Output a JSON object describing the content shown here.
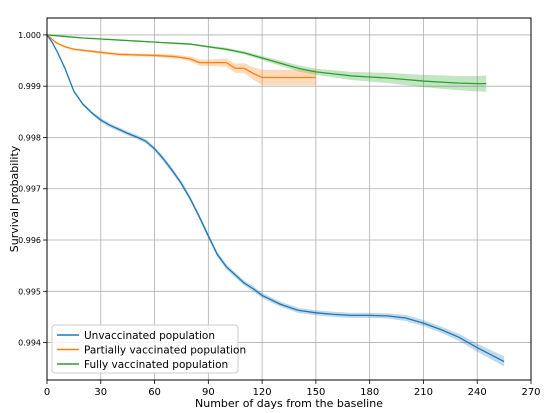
{
  "chart_data": {
    "type": "line",
    "title": "",
    "xlabel": "Number of days from the baseline",
    "ylabel": "Survival probability",
    "xlim": [
      0,
      270
    ],
    "ylim": [
      0.99327,
      1.00033
    ],
    "xticks": [
      0,
      30,
      60,
      90,
      120,
      150,
      180,
      210,
      240,
      270
    ],
    "xtick_labels": [
      "0",
      "30",
      "60",
      "90",
      "120",
      "150",
      "180",
      "210",
      "240",
      "270"
    ],
    "yticks": [
      0.994,
      0.995,
      0.996,
      0.997,
      0.998,
      0.999,
      1.0
    ],
    "ytick_labels": [
      "0.994",
      "0.995",
      "0.996",
      "0.997",
      "0.998",
      "0.999",
      "1.000"
    ],
    "grid": true,
    "legend_position": "lower-left",
    "series": [
      {
        "name": "Unvaccinated population",
        "color": "#1f77b4",
        "x": [
          0,
          3,
          6,
          10,
          15,
          20,
          25,
          30,
          35,
          40,
          45,
          50,
          55,
          60,
          65,
          70,
          75,
          80,
          85,
          90,
          95,
          100,
          105,
          110,
          115,
          120,
          130,
          140,
          150,
          160,
          170,
          180,
          190,
          200,
          210,
          220,
          230,
          240,
          250,
          255
        ],
        "y": [
          1.0,
          0.99985,
          0.99965,
          0.99935,
          0.9989,
          0.99865,
          0.99848,
          0.99834,
          0.99824,
          0.99816,
          0.99808,
          0.99801,
          0.99793,
          0.99778,
          0.99758,
          0.99735,
          0.9971,
          0.9968,
          0.99645,
          0.99608,
          0.99572,
          0.99548,
          0.99532,
          0.99516,
          0.99505,
          0.99492,
          0.99475,
          0.99463,
          0.99458,
          0.99455,
          0.99453,
          0.99453,
          0.99452,
          0.99448,
          0.99438,
          0.99425,
          0.9941,
          0.9939,
          0.99372,
          0.99363
        ],
        "ci_halfwidth": [
          0.0,
          2e-05,
          2e-05,
          3e-05,
          3e-05,
          3e-05,
          3e-05,
          4e-05,
          4e-05,
          4e-05,
          4e-05,
          4e-05,
          4e-05,
          4e-05,
          5e-05,
          5e-05,
          5e-05,
          5e-05,
          5e-05,
          5e-05,
          5e-05,
          5e-05,
          5e-05,
          5e-05,
          5e-05,
          5e-05,
          5e-05,
          5e-05,
          5e-05,
          5e-05,
          5e-05,
          5e-05,
          5e-05,
          6e-05,
          6e-05,
          6e-05,
          7e-05,
          8e-05,
          9e-05,
          0.0001
        ]
      },
      {
        "name": "Partially vaccinated population",
        "color": "#ff7f0e",
        "x": [
          0,
          5,
          10,
          15,
          20,
          30,
          40,
          50,
          60,
          70,
          75,
          80,
          85,
          90,
          95,
          100,
          105,
          110,
          115,
          120,
          130,
          140,
          150
        ],
        "y": [
          1.0,
          0.99985,
          0.99977,
          0.99972,
          0.9997,
          0.99966,
          0.99962,
          0.99961,
          0.9996,
          0.99958,
          0.99956,
          0.99953,
          0.99946,
          0.99946,
          0.99946,
          0.99946,
          0.99935,
          0.99935,
          0.99925,
          0.99917,
          0.99917,
          0.99917,
          0.99917
        ],
        "ci_halfwidth": [
          0.0,
          2e-05,
          2e-05,
          2e-05,
          2e-05,
          3e-05,
          3e-05,
          3e-05,
          3e-05,
          4e-05,
          4e-05,
          5e-05,
          6e-05,
          6e-05,
          7e-05,
          8e-05,
          9e-05,
          0.0001,
          0.00012,
          0.00015,
          0.00015,
          0.00015,
          0.00015
        ]
      },
      {
        "name": "Fully vaccinated population",
        "color": "#2ca02c",
        "x": [
          0,
          10,
          20,
          30,
          40,
          50,
          60,
          70,
          80,
          90,
          100,
          110,
          120,
          130,
          140,
          150,
          160,
          170,
          180,
          190,
          200,
          210,
          220,
          230,
          240,
          245
        ],
        "y": [
          1.0,
          0.99997,
          0.99994,
          0.99992,
          0.9999,
          0.99988,
          0.99986,
          0.99984,
          0.99982,
          0.99977,
          0.99972,
          0.99965,
          0.99955,
          0.99945,
          0.99935,
          0.99928,
          0.99924,
          0.9992,
          0.99918,
          0.99916,
          0.99913,
          0.9991,
          0.99908,
          0.99906,
          0.99905,
          0.99905
        ]
      }
    ],
    "fully_ci_halfwidth": [
      0.0,
      1e-05,
      1e-05,
      1e-05,
      1e-05,
      1e-05,
      1e-05,
      2e-05,
      2e-05,
      2e-05,
      3e-05,
      3e-05,
      4e-05,
      5e-05,
      6e-05,
      6e-05,
      7e-05,
      8e-05,
      9e-05,
      0.0001,
      0.00011,
      0.00012,
      0.00013,
      0.00014,
      0.00015,
      0.00016
    ]
  }
}
